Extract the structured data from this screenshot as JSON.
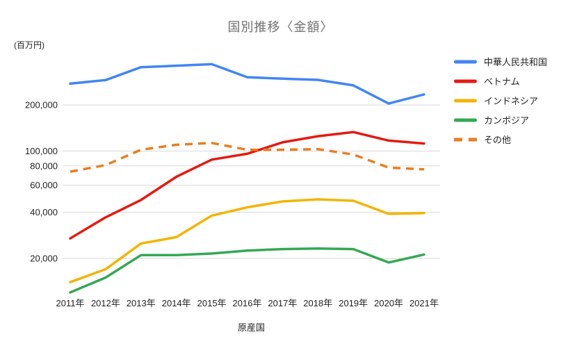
{
  "title": "国別推移〈金額〉",
  "y_unit_label": "(百万円)",
  "x_axis_title": "原産国",
  "colors": {
    "background": "#ffffff",
    "title_text": "#717171",
    "axis_text": "#1f1f1f",
    "gridline": "#dadada",
    "series_blue": "#4285f4",
    "series_red": "#e51a10",
    "series_yellow": "#f4b400",
    "series_green": "#34a853",
    "series_orange": "#eb7d1e"
  },
  "chart_data": {
    "type": "line",
    "title": "国別推移〈金額〉",
    "xlabel": "原産国",
    "ylabel": "(百万円)",
    "y_scale": "log",
    "ylim": [
      11500,
      440000
    ],
    "grid": "horizontal",
    "legend_position": "right",
    "x": [
      "2011年",
      "2012年",
      "2013年",
      "2014年",
      "2015年",
      "2016年",
      "2017年",
      "2018年",
      "2019年",
      "2020年",
      "2021年"
    ],
    "y_ticks": [
      {
        "label": "200,000",
        "value": 200000
      },
      {
        "label": "100,000",
        "value": 100000
      },
      {
        "label": "80,000",
        "value": 80000
      },
      {
        "label": "60,000",
        "value": 60000
      },
      {
        "label": "40,000",
        "value": 40000
      },
      {
        "label": "20,000",
        "value": 20000
      }
    ],
    "series": [
      {
        "name": "中華人民共和国",
        "color": "#4285f4",
        "style": "solid",
        "values": [
          275000,
          290000,
          352000,
          360000,
          368000,
          303000,
          296000,
          291000,
          268000,
          204000,
          234000
        ]
      },
      {
        "name": "ベトナム",
        "color": "#e51a10",
        "style": "solid",
        "values": [
          27000,
          37000,
          48000,
          68000,
          88000,
          96000,
          114000,
          125000,
          133000,
          117000,
          112000
        ]
      },
      {
        "name": "インドネシア",
        "color": "#f4b400",
        "style": "solid",
        "values": [
          14000,
          17000,
          25000,
          27500,
          38000,
          43000,
          47000,
          48500,
          47500,
          39000,
          39500
        ]
      },
      {
        "name": "カンボジア",
        "color": "#34a853",
        "style": "solid",
        "values": [
          12000,
          15000,
          21000,
          21000,
          21500,
          22500,
          23000,
          23200,
          23000,
          18800,
          21200
        ]
      },
      {
        "name": "その他",
        "color": "#eb7d1e",
        "style": "dashed",
        "values": [
          73500,
          81000,
          102000,
          110000,
          113000,
          102000,
          102000,
          103000,
          95000,
          78000,
          76000
        ]
      }
    ]
  }
}
